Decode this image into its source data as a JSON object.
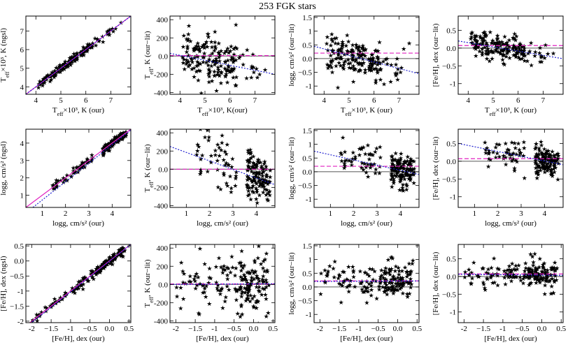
{
  "title": "253 FGK stars",
  "colors": {
    "fit": "#2020d0",
    "mean": "#e020c0",
    "zero": "#000000",
    "points": "#000000"
  },
  "chart_data": [
    {
      "type": "scatter",
      "xlabel": "Teff×10³, K (our)",
      "ylabel": "Teff×10³, K (ngsl)",
      "xlim": [
        3.6,
        7.8
      ],
      "ylim": [
        3.6,
        7.8
      ],
      "xticks": [
        4,
        5,
        6,
        7
      ],
      "yticks": [
        4,
        5,
        6,
        7
      ],
      "kind": "compare",
      "source": "teff",
      "one_to_one": true,
      "fit": [
        [
          3.6,
          3.6
        ],
        [
          7.8,
          7.8
        ]
      ]
    },
    {
      "type": "scatter",
      "xlabel": "Teff×10³, K(our)",
      "ylabel": "Teff, K (our−lit)",
      "xlim": [
        3.6,
        7.8
      ],
      "ylim": [
        -420,
        440
      ],
      "xticks": [
        4,
        5,
        6,
        7
      ],
      "yticks": [
        -400,
        -200,
        0,
        200,
        400
      ],
      "kind": "resid",
      "source": "teff",
      "spread": 140,
      "trend": [
        [
          3.6,
          30
        ],
        [
          7.8,
          -200
        ]
      ],
      "mean": 5
    },
    {
      "type": "scatter",
      "xlabel": "Teff×10³, K (our)",
      "ylabel": "logg, cm/s² (our−lit)",
      "xlim": [
        3.6,
        7.8
      ],
      "ylim": [
        -1.3,
        1.55
      ],
      "xticks": [
        4,
        5,
        6,
        7
      ],
      "yticks": [
        -1.0,
        -0.5,
        0.0,
        0.5,
        1.0,
        1.5
      ],
      "kind": "resid",
      "source": "teff",
      "spread": 0.32,
      "trend": [
        [
          3.6,
          0.45
        ],
        [
          7.8,
          -0.55
        ]
      ],
      "mean": 0.2
    },
    {
      "type": "scatter",
      "xlabel": "Teff×10³, K (our)",
      "ylabel": "[Fe/H], dex (our−lit)",
      "xlim": [
        3.6,
        7.8
      ],
      "ylim": [
        -1.3,
        0.9
      ],
      "xticks": [
        4,
        5,
        6,
        7
      ],
      "yticks": [
        -1.0,
        -0.5,
        0.0,
        0.5
      ],
      "kind": "resid",
      "source": "teff",
      "spread": 0.2,
      "trend": [
        [
          3.6,
          0.2
        ],
        [
          7.8,
          -0.3
        ]
      ],
      "mean": 0.07
    },
    {
      "type": "scatter",
      "xlabel": "logg, cm/s² (our)",
      "ylabel": "logg, cm/s² (ngsl)",
      "xlim": [
        0.3,
        4.8
      ],
      "ylim": [
        0.3,
        4.8
      ],
      "xticks": [
        1,
        2,
        3,
        4
      ],
      "yticks": [
        1,
        2,
        3,
        4
      ],
      "kind": "compare",
      "source": "logg",
      "one_to_one": true,
      "fit": [
        [
          0.6,
          0.3
        ],
        [
          4.8,
          4.75
        ]
      ]
    },
    {
      "type": "scatter",
      "xlabel": "logg, cm/s² (our)",
      "ylabel": "Teff, K (our−lit)",
      "xlim": [
        0.3,
        4.8
      ],
      "ylim": [
        -420,
        440
      ],
      "xticks": [
        1,
        2,
        3,
        4
      ],
      "yticks": [
        -400,
        -200,
        0,
        200,
        400
      ],
      "kind": "resid",
      "source": "logg",
      "spread": 140,
      "trend": [
        [
          0.3,
          250
        ],
        [
          4.8,
          -170
        ]
      ],
      "mean": 0
    },
    {
      "type": "scatter",
      "xlabel": "logg, cm/s² (our)",
      "ylabel": "logg, cm/s² (our−lit)",
      "xlim": [
        0.3,
        4.8
      ],
      "ylim": [
        -1.3,
        1.55
      ],
      "xticks": [
        1,
        2,
        3,
        4
      ],
      "yticks": [
        -1.0,
        -0.5,
        0.0,
        0.5,
        1.0,
        1.5
      ],
      "kind": "resid",
      "source": "logg",
      "spread": 0.32,
      "trend": [
        [
          0.3,
          0.75
        ],
        [
          4.8,
          -0.1
        ]
      ],
      "mean": 0.2
    },
    {
      "type": "scatter",
      "xlabel": "logg, cm/s² (our)",
      "ylabel": "[Fe/H], dex (our−lit)",
      "xlim": [
        0.3,
        4.8
      ],
      "ylim": [
        -1.3,
        0.9
      ],
      "xticks": [
        1,
        2,
        3,
        4
      ],
      "yticks": [
        -1.0,
        -0.5,
        0.0,
        0.5
      ],
      "kind": "resid",
      "source": "logg",
      "spread": 0.2,
      "trend": [
        [
          0.3,
          0.5
        ],
        [
          4.8,
          -0.1
        ]
      ],
      "mean": 0.07
    },
    {
      "type": "scatter",
      "xlabel": "[Fe/H], dex (our)",
      "ylabel": "[Fe/H], dex (ngsl)",
      "xlim": [
        -2.15,
        0.55
      ],
      "ylim": [
        -2.05,
        0.55
      ],
      "xticks": [
        -2.0,
        -1.5,
        -1.0,
        -0.5,
        0.0,
        0.5
      ],
      "yticks": [
        -2.0,
        -1.5,
        -1.0,
        -0.5,
        0.0,
        0.5
      ],
      "kind": "compare",
      "source": "feh",
      "one_to_one": true,
      "fit": [
        [
          -2.15,
          -2.2
        ],
        [
          0.55,
          0.55
        ]
      ]
    },
    {
      "type": "scatter",
      "xlabel": "[Fe/H], dex (our)",
      "ylabel": "Teff, K (our−lit)",
      "xlim": [
        -2.15,
        0.55
      ],
      "ylim": [
        -420,
        440
      ],
      "xticks": [
        -2.0,
        -1.5,
        -1.0,
        -0.5,
        0.0,
        0.5
      ],
      "yticks": [
        -400,
        -200,
        0,
        200,
        400
      ],
      "kind": "resid",
      "source": "feh",
      "spread": 150,
      "trend": [
        [
          -2.15,
          0
        ],
        [
          0.55,
          8
        ]
      ],
      "mean": 5
    },
    {
      "type": "scatter",
      "xlabel": "[Fe/H], dex (our)",
      "ylabel": "logg, cm/s² (our−lit)",
      "xlim": [
        -2.15,
        0.55
      ],
      "ylim": [
        -1.3,
        1.55
      ],
      "xticks": [
        -2.0,
        -1.5,
        -1.0,
        -0.5,
        0.0,
        0.5
      ],
      "yticks": [
        -1.0,
        -0.5,
        0.0,
        0.5,
        1.0,
        1.5
      ],
      "kind": "resid",
      "source": "feh",
      "spread": 0.32,
      "trend": [
        [
          -2.15,
          0.2
        ],
        [
          0.55,
          0.22
        ]
      ],
      "mean": 0.22
    },
    {
      "type": "scatter",
      "xlabel": "[Fe/H], dex (our)",
      "ylabel": "[Fe/H], dex (our−lit)",
      "xlim": [
        -2.15,
        0.55
      ],
      "ylim": [
        -1.3,
        0.9
      ],
      "xticks": [
        -2.0,
        -1.5,
        -1.0,
        -0.5,
        0.0,
        0.5
      ],
      "yticks": [
        -1.0,
        -0.5,
        0.0,
        0.5
      ],
      "kind": "resid",
      "source": "feh",
      "spread": 0.2,
      "trend": [
        [
          -2.15,
          0.06
        ],
        [
          0.55,
          0.03
        ]
      ],
      "mean": 0.07
    }
  ]
}
